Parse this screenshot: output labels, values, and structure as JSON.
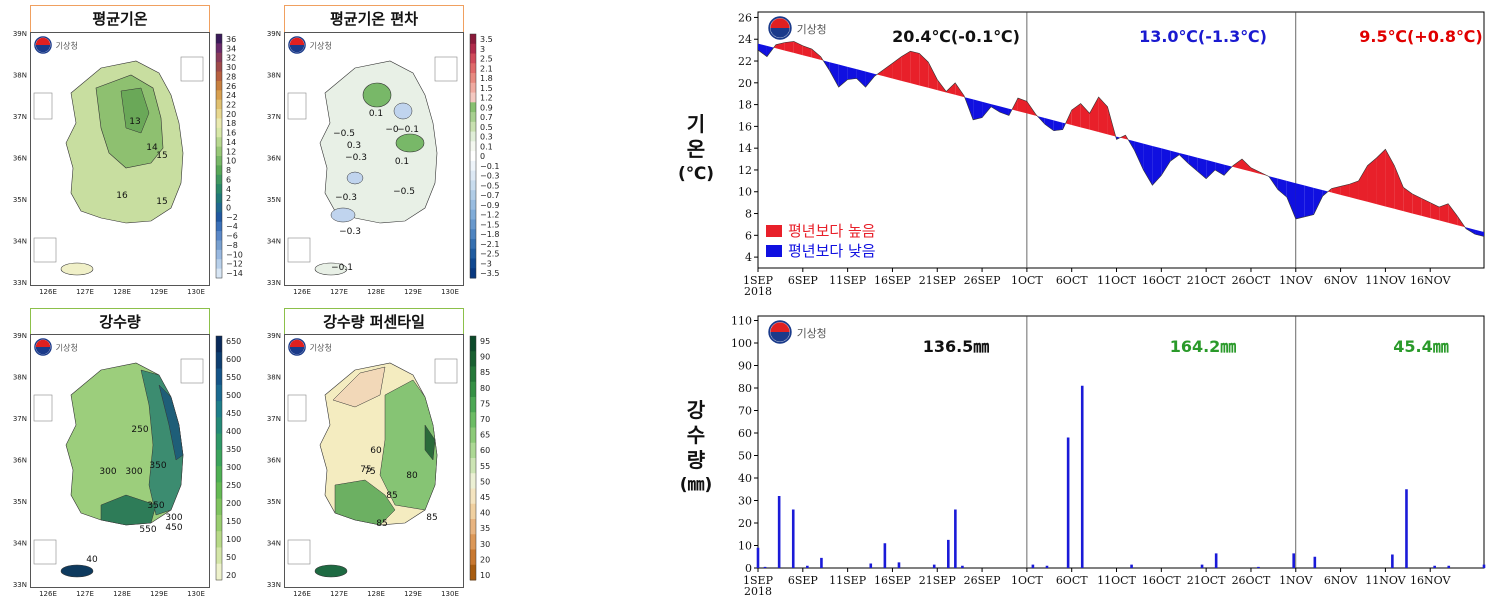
{
  "maps": [
    {
      "title": "평균기온",
      "colorbar": [
        "36",
        "34",
        "32",
        "30",
        "28",
        "26",
        "24",
        "22",
        "20",
        "18",
        "16",
        "14",
        "12",
        "10",
        "8",
        "6",
        "4",
        "2",
        "0",
        "−2",
        "−4",
        "−6",
        "−8",
        "−10",
        "−12",
        "−14"
      ],
      "labels": [
        "13",
        "14",
        "15",
        "16",
        "15"
      ]
    },
    {
      "title": "평균기온 편차",
      "colorbar": [
        "3.5",
        "3",
        "2.5",
        "2.1",
        "1.8",
        "1.5",
        "1.2",
        "0.9",
        "0.7",
        "0.5",
        "0.3",
        "0.1",
        "0",
        "−0.1",
        "−0.3",
        "−0.5",
        "−0.7",
        "−0.9",
        "−1.2",
        "−1.5",
        "−1.8",
        "−2.1",
        "−2.5",
        "−3",
        "−3.5"
      ],
      "labels": [
        "0.1",
        "−0.5",
        "0.3",
        "−0",
        "−0.1",
        "−0.3",
        "0.1",
        "−0.3",
        "−0.5",
        "−0.3",
        "−0.1"
      ]
    },
    {
      "title": "강수량",
      "colorbar": [
        "650",
        "600",
        "550",
        "500",
        "450",
        "400",
        "350",
        "300",
        "250",
        "200",
        "150",
        "100",
        "50",
        "20"
      ],
      "labels": [
        "250",
        "300",
        "300",
        "350",
        "350",
        "300",
        "450",
        "550",
        "40"
      ]
    },
    {
      "title": "강수량 퍼센타일",
      "colorbar": [
        "95",
        "90",
        "85",
        "80",
        "75",
        "70",
        "65",
        "60",
        "55",
        "50",
        "45",
        "40",
        "35",
        "30",
        "20",
        "10"
      ],
      "labels": [
        "60",
        "75",
        "75",
        "85",
        "80",
        "85",
        "85"
      ]
    }
  ],
  "map_axes": {
    "lon": [
      "126E",
      "127E",
      "128E",
      "129E",
      "130E"
    ],
    "lat": [
      "39N",
      "38N",
      "37N",
      "36N",
      "35N",
      "34N",
      "33N"
    ]
  },
  "logo_text": "기상청",
  "chart_data": [
    {
      "type": "area",
      "title": "",
      "ylabel_lines": [
        "기",
        "온",
        "(℃)"
      ],
      "ylim": [
        3,
        26.5
      ],
      "yticks": [
        4,
        6,
        8,
        10,
        12,
        14,
        16,
        18,
        20,
        22,
        24,
        26
      ],
      "x_tick_labels": [
        "1SEP",
        "6SEP",
        "11SEP",
        "16SEP",
        "21SEP",
        "26SEP",
        "1OCT",
        "6OCT",
        "11OCT",
        "16OCT",
        "21OCT",
        "26OCT",
        "1NOV",
        "6NOV",
        "11NOV",
        "16NOV"
      ],
      "x_year": "2018",
      "period_dividers": [
        "1OCT",
        "1NOV"
      ],
      "annotations": [
        {
          "text": "20.4℃(-0.1℃)",
          "color": "#111111"
        },
        {
          "text": "13.0℃(-1.3℃)",
          "color": "#1a1ad0"
        },
        {
          "text": "9.5℃(+0.8℃)",
          "color": "#e00000"
        }
      ],
      "legend": [
        {
          "name": "평년보다 높음",
          "color": "#e8202a"
        },
        {
          "name": "평년보다 낮음",
          "color": "#1010e0"
        }
      ],
      "day_start": "1SEP",
      "normal_start": 23.6,
      "normal_end": 6.3,
      "observed": [
        23.0,
        22.4,
        23.5,
        23.7,
        23.8,
        23.4,
        23.1,
        22.4,
        21.1,
        19.6,
        20.3,
        20.4,
        19.6,
        20.6,
        21.2,
        21.8,
        22.4,
        22.9,
        22.7,
        21.9,
        20.3,
        19.2,
        20.0,
        18.8,
        16.6,
        16.8,
        17.8,
        17.3,
        17.0,
        18.6,
        18.3,
        17.1,
        16.2,
        15.6,
        15.7,
        17.5,
        18.1,
        17.2,
        18.7,
        17.8,
        14.8,
        15.2,
        13.8,
        12.0,
        10.6,
        11.5,
        12.8,
        13.4,
        12.6,
        11.9,
        11.2,
        12.0,
        11.5,
        12.4,
        13.0,
        12.2,
        11.8,
        11.4,
        10.2,
        9.5,
        7.5,
        7.7,
        7.9,
        9.6,
        10.3,
        10.5,
        10.7,
        11.0,
        12.4,
        13.1,
        13.9,
        12.4,
        10.4,
        9.8,
        9.4,
        9.0,
        8.6,
        8.9,
        7.8,
        6.6,
        6.1,
        5.9
      ]
    },
    {
      "type": "bar",
      "title": "",
      "ylabel_lines": [
        "강",
        "수",
        "량",
        "(㎜)"
      ],
      "ylim": [
        0,
        112
      ],
      "yticks": [
        0,
        10,
        20,
        30,
        40,
        50,
        60,
        70,
        80,
        90,
        100,
        110
      ],
      "x_tick_labels": [
        "1SEP",
        "6SEP",
        "11SEP",
        "16SEP",
        "21SEP",
        "26SEP",
        "1OCT",
        "6OCT",
        "11OCT",
        "16OCT",
        "21OCT",
        "26OCT",
        "1NOV",
        "6NOV",
        "11NOV",
        "16NOV"
      ],
      "x_year": "2018",
      "day_start": "1SEP",
      "period_dividers": [
        "1OCT",
        "1NOV"
      ],
      "annotations": [
        {
          "text": "136.5㎜",
          "color": "#111111"
        },
        {
          "text": "164.2㎜",
          "color": "#2a9a2a"
        },
        {
          "text": "45.4㎜",
          "color": "#2a9a2a"
        }
      ],
      "bar_color": "#1a1ad8",
      "bars": [
        [
          0,
          9
        ],
        [
          1,
          0.5
        ],
        [
          3,
          32
        ],
        [
          5,
          26
        ],
        [
          7,
          1
        ],
        [
          9,
          4.5
        ],
        [
          16,
          2
        ],
        [
          18,
          11
        ],
        [
          20,
          2.5
        ],
        [
          25,
          1.5
        ],
        [
          27,
          12.5
        ],
        [
          28,
          26
        ],
        [
          29,
          1
        ],
        [
          39,
          1.5
        ],
        [
          41,
          1
        ],
        [
          44,
          58
        ],
        [
          46,
          81
        ],
        [
          53,
          1.5
        ],
        [
          63,
          1.5
        ],
        [
          65,
          6.5
        ],
        [
          71,
          0.5
        ],
        [
          76,
          6.5
        ],
        [
          79,
          5
        ],
        [
          90,
          6
        ],
        [
          92,
          35
        ],
        [
          96,
          1
        ],
        [
          98,
          1
        ],
        [
          103,
          1.5
        ]
      ]
    }
  ]
}
